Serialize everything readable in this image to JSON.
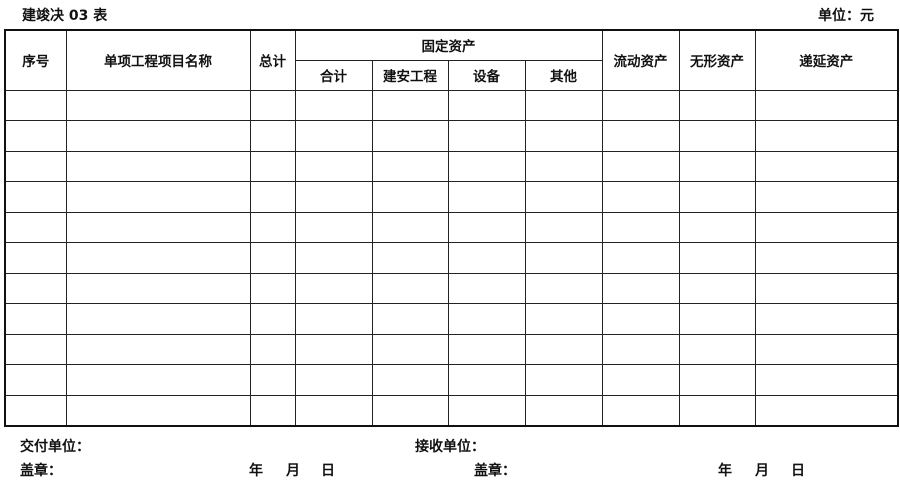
{
  "form_code": "建竣决 03 表",
  "unit_label": "单位：元",
  "table": {
    "headers": {
      "seq": "序号",
      "name": "单项工程项目名称",
      "total": "总计",
      "fixed_assets": "固定资产",
      "fixed_sub": [
        "合计",
        "建安工程",
        "设备",
        "其他"
      ],
      "current_assets": "流动资产",
      "intangible_assets": "无形资产",
      "deferred_assets": "递延资产"
    },
    "row_count": 11
  },
  "footer": {
    "deliver_unit": "交付单位：",
    "receive_unit": "接收单位：",
    "seal_left": "盖章：",
    "seal_right": "盖章：",
    "year": "年",
    "month": "月",
    "day": "日"
  }
}
